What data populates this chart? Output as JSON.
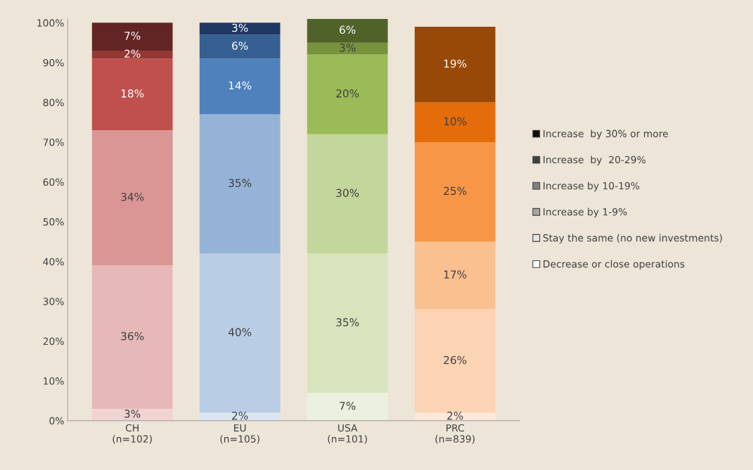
{
  "chart_data": {
    "type": "bar",
    "stacked": true,
    "legend": "right",
    "grid": false,
    "categories": [
      "CH\n(n=102)",
      "EU\n(n=105)",
      "USA\n(n=101)",
      "PRC\n(n=839)"
    ],
    "ylim": [
      0,
      101
    ],
    "yticks": [
      {
        "value": 0,
        "label": "0%"
      },
      {
        "value": 10,
        "label": "10%"
      },
      {
        "value": 20,
        "label": "20%"
      },
      {
        "value": 30,
        "label": "30%"
      },
      {
        "value": 40,
        "label": "40%"
      },
      {
        "value": 50,
        "label": "50%"
      },
      {
        "value": 60,
        "label": "60%"
      },
      {
        "value": 70,
        "label": "70%"
      },
      {
        "value": 80,
        "label": "80%"
      },
      {
        "value": 90,
        "label": "90%"
      },
      {
        "value": 100,
        "label": "100%"
      }
    ],
    "series": [
      {
        "name": "Decrease or close operations",
        "color": "#ffffff",
        "values": [
          3,
          2,
          7,
          2
        ],
        "value_labels": [
          "3%",
          "2%",
          "7%",
          "2%"
        ],
        "colors": [
          "#f2d3d3",
          "#dce6f2",
          "#ebf1de",
          "#fde9d9"
        ]
      },
      {
        "name": "Stay the same (no new investments)",
        "color": "#e6e6e6",
        "values": [
          36,
          40,
          35,
          26
        ],
        "value_labels": [
          "36%",
          "40%",
          "35%",
          "26%"
        ],
        "colors": [
          "#e6b9b8",
          "#b9cde5",
          "#d7e4bc",
          "#fbd4b4"
        ]
      },
      {
        "name": "Increase by 1-9%",
        "color": "#a6a6a6",
        "values": [
          34,
          35,
          30,
          17
        ],
        "value_labels": [
          "34%",
          "35%",
          "30%",
          "17%"
        ],
        "colors": [
          "#d99694",
          "#95b3d7",
          "#c3d69b",
          "#fac090"
        ]
      },
      {
        "name": "Increase by 10-19%",
        "color": "#7f7f7f",
        "values": [
          18,
          14,
          20,
          25
        ],
        "value_labels": [
          "18%",
          "14%",
          "20%",
          "25%"
        ],
        "colors": [
          "#c0504d",
          "#4f81bd",
          "#9bbb59",
          "#f79646"
        ]
      },
      {
        "name": "Increase  by  20-29%",
        "color": "#404040",
        "values": [
          2,
          6,
          3,
          10
        ],
        "value_labels": [
          "2%",
          "6%",
          "3%",
          "10%"
        ],
        "colors": [
          "#953735",
          "#376092",
          "#77933c",
          "#e46c0a"
        ]
      },
      {
        "name": "Increase  by 30% or more",
        "color": "#0d0d0d",
        "values": [
          7,
          3,
          6,
          19
        ],
        "value_labels": [
          "7%",
          "3%",
          "6%",
          "19%"
        ],
        "colors": [
          "#632523",
          "#1f3864",
          "#4f6228",
          "#984807"
        ]
      }
    ]
  }
}
